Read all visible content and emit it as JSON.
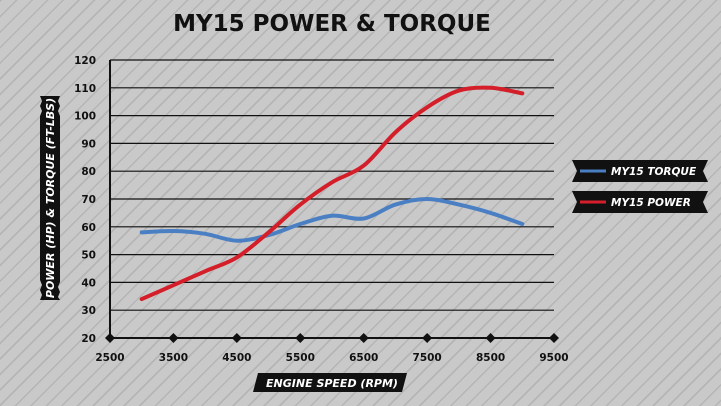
{
  "chart_data": {
    "type": "line",
    "title": "MY15 POWER & TORQUE",
    "xlabel": "ENGINE SPEED (RPM)",
    "ylabel": "POWER (HP) & TORQUE (FT-LBS)",
    "xlim": [
      2500,
      9500
    ],
    "ylim": [
      20,
      120
    ],
    "x_ticks": [
      "2500",
      "3500",
      "4500",
      "5500",
      "6500",
      "7500",
      "8500",
      "9500"
    ],
    "y_ticks": [
      "20",
      "30",
      "40",
      "50",
      "60",
      "70",
      "80",
      "90",
      "100",
      "110",
      "120"
    ],
    "grid": true,
    "legend_position": "right",
    "series": [
      {
        "name": "MY15 TORQUE",
        "color": "#4a7fc4",
        "x": [
          3000,
          3500,
          4000,
          4500,
          5000,
          5500,
          6000,
          6500,
          7000,
          7500,
          8000,
          8500,
          9000
        ],
        "y": [
          58,
          58.5,
          57.5,
          55,
          57,
          61,
          64,
          63,
          68,
          70,
          68,
          65,
          61
        ]
      },
      {
        "name": "MY15 POWER",
        "color": "#d41f2a",
        "x": [
          3000,
          3500,
          4000,
          4500,
          5000,
          5500,
          6000,
          6500,
          7000,
          7500,
          8000,
          8500,
          9000
        ],
        "y": [
          34,
          39,
          44,
          49,
          58,
          68,
          76,
          82,
          94,
          103,
          109,
          110,
          108
        ]
      }
    ]
  }
}
